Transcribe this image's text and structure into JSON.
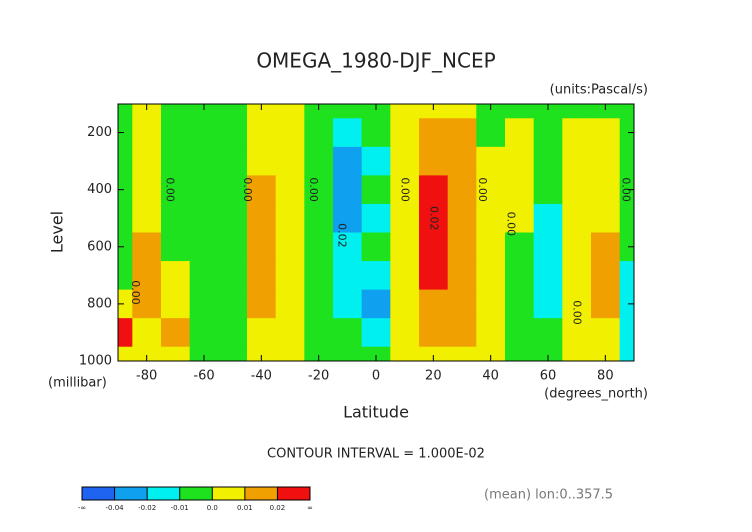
{
  "chart_data": {
    "type": "contour",
    "title": "OMEGA_1980-DJF_NCEP",
    "subtitle": "(units:Pascal/s)",
    "x_label": "Latitude",
    "x_units": "(degrees_north)",
    "y_label": "Level",
    "y_units": "(millibar)",
    "footnote": "CONTOUR INTERVAL = 1.000E-02",
    "annotation": "(mean) lon:0..357.5",
    "x": [
      -90,
      -80,
      -70,
      -60,
      -50,
      -40,
      -30,
      -20,
      -10,
      0,
      10,
      20,
      30,
      40,
      50,
      60,
      70,
      80,
      90
    ],
    "y": [
      100,
      200,
      300,
      400,
      500,
      600,
      700,
      800,
      900,
      1000
    ],
    "z": [
      [
        -0.005,
        0.004,
        -0.003,
        -0.006,
        -0.003,
        0.006,
        0.004,
        -0.004,
        -0.006,
        -0.005,
        0.003,
        0.006,
        0.004,
        -0.004,
        -0.005,
        -0.006,
        -0.004,
        -0.003,
        -0.005
      ],
      [
        -0.005,
        0.006,
        -0.004,
        -0.006,
        -0.003,
        0.008,
        0.005,
        -0.004,
        -0.015,
        -0.008,
        0.005,
        0.012,
        0.01,
        -0.002,
        0.002,
        -0.004,
        0.002,
        0.003,
        -0.004
      ],
      [
        -0.005,
        0.006,
        -0.004,
        -0.006,
        -0.003,
        0.009,
        0.005,
        -0.004,
        -0.022,
        -0.011,
        0.006,
        0.018,
        0.013,
        0.002,
        0.004,
        -0.003,
        0.004,
        0.005,
        -0.004
      ],
      [
        -0.005,
        0.007,
        -0.003,
        -0.006,
        -0.003,
        0.012,
        0.006,
        -0.004,
        -0.025,
        -0.008,
        0.007,
        0.024,
        0.015,
        0.004,
        0.005,
        -0.005,
        0.005,
        0.006,
        -0.003
      ],
      [
        -0.005,
        0.008,
        -0.002,
        -0.006,
        -0.003,
        0.014,
        0.006,
        -0.004,
        -0.024,
        -0.012,
        0.007,
        0.026,
        0.015,
        0.002,
        0.003,
        -0.011,
        0.006,
        0.008,
        -0.004
      ],
      [
        -0.005,
        0.011,
        -0.001,
        -0.006,
        -0.003,
        0.015,
        0.006,
        -0.004,
        -0.018,
        -0.009,
        0.006,
        0.025,
        0.014,
        0.001,
        -0.002,
        -0.014,
        0.006,
        0.012,
        -0.008
      ],
      [
        -0.005,
        0.012,
        0.003,
        -0.006,
        -0.003,
        0.014,
        0.005,
        -0.004,
        -0.014,
        -0.012,
        0.006,
        0.022,
        0.013,
        0.003,
        -0.003,
        -0.013,
        0.006,
        0.014,
        -0.012
      ],
      [
        0.005,
        0.012,
        0.008,
        -0.006,
        -0.003,
        0.013,
        0.005,
        -0.004,
        -0.012,
        -0.022,
        0.005,
        0.016,
        0.018,
        0.004,
        -0.004,
        -0.012,
        0.005,
        0.013,
        -0.013
      ],
      [
        0.022,
        0.008,
        0.013,
        -0.005,
        -0.003,
        0.009,
        0.004,
        -0.004,
        -0.008,
        -0.012,
        0.004,
        0.014,
        0.012,
        0.003,
        -0.004,
        -0.008,
        0.005,
        0.009,
        -0.014
      ],
      [
        0.004,
        0.006,
        0.006,
        -0.004,
        -0.003,
        0.006,
        0.003,
        -0.004,
        -0.005,
        -0.005,
        0.002,
        0.008,
        0.006,
        0.002,
        -0.003,
        -0.004,
        0.004,
        0.005,
        -0.015
      ]
    ],
    "xlim": [
      -90,
      90
    ],
    "xticks": [
      -80,
      -60,
      -40,
      -20,
      0,
      20,
      40,
      60,
      80
    ],
    "ylim": [
      1000,
      100
    ],
    "yticks": [
      200,
      400,
      600,
      800,
      1000
    ],
    "levels": [
      -0.04,
      -0.02,
      -0.01,
      {
        "value": 0,
        "label": "0.0"
      },
      0.01,
      0.02
    ],
    "level_ends": [
      "-∞",
      "∞"
    ],
    "colors": [
      "#1e64f0",
      "#10a0f0",
      "#00f0f0",
      "#1ee21e",
      "#f0f000",
      "#f0a000",
      "#f01010"
    ],
    "contour_labels": [
      {
        "label": "0.00",
        "x": -84,
        "y": 760
      },
      {
        "label": "0.00",
        "x": -72,
        "y": 400
      },
      {
        "label": "0.00",
        "x": -45,
        "y": 400
      },
      {
        "label": "0.00",
        "x": -22,
        "y": 400
      },
      {
        "label": "0.02",
        "x": -12,
        "y": 560
      },
      {
        "label": "0.00",
        "x": 10,
        "y": 400
      },
      {
        "label": "0.02",
        "x": 20,
        "y": 500
      },
      {
        "label": "0.00",
        "x": 37,
        "y": 400
      },
      {
        "label": "0.00",
        "x": 47,
        "y": 520
      },
      {
        "label": "0.00",
        "x": 70,
        "y": 830
      },
      {
        "label": "0.00",
        "x": 87,
        "y": 400
      }
    ]
  }
}
